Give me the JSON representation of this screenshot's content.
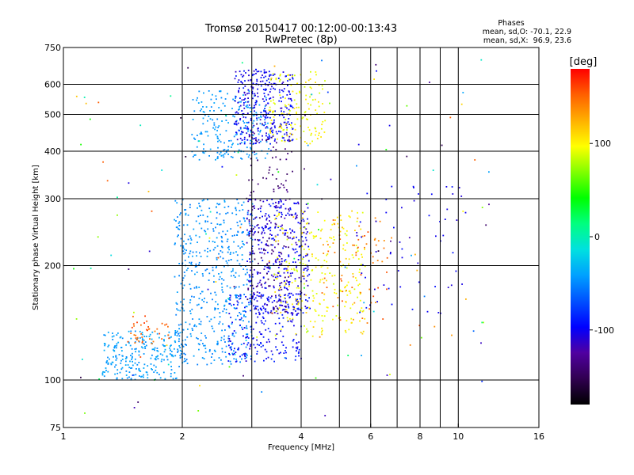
{
  "chart_data": {
    "type": "scatter",
    "title": "Tromsø 20150417 00:12:00-00:13:43",
    "subtitle": "RwPretec (8p)",
    "phase_info": {
      "heading": "Phases",
      "line_o": "mean, sd,O: -70.1, 22.9",
      "line_x": "mean, sd,X:  96.9, 23.6"
    },
    "xlabel": "Frequency [MHz]",
    "ylabel": "Stationary phase Virtual Height [km]",
    "x_scale": "log",
    "y_scale": "log",
    "xlim": [
      1,
      16
    ],
    "ylim": [
      75,
      750
    ],
    "x_ticks": [
      {
        "value": 1,
        "label": "1"
      },
      {
        "value": 2,
        "label": "2"
      },
      {
        "value": 4,
        "label": "4"
      },
      {
        "value": 6,
        "label": "6"
      },
      {
        "value": 8,
        "label": "8"
      },
      {
        "value": 10,
        "label": "10"
      },
      {
        "value": 16,
        "label": "16"
      }
    ],
    "x_grid": [
      2,
      3,
      4,
      5,
      6,
      7,
      8,
      9,
      10
    ],
    "y_ticks": [
      {
        "value": 75,
        "label": "75"
      },
      {
        "value": 100,
        "label": "100"
      },
      {
        "value": 200,
        "label": "200"
      },
      {
        "value": 300,
        "label": "300"
      },
      {
        "value": 400,
        "label": "400"
      },
      {
        "value": 500,
        "label": "500"
      },
      {
        "value": 600,
        "label": "600"
      },
      {
        "value": 750,
        "label": "750"
      }
    ],
    "y_grid": [
      100,
      200,
      300,
      400,
      500,
      600
    ],
    "grid": true,
    "colorbar": {
      "unit": "[deg]",
      "min": -180,
      "max": 180,
      "ticks": [
        {
          "value": 100,
          "label": "100"
        },
        {
          "value": 0,
          "label": "0"
        },
        {
          "value": -100,
          "label": "-100"
        }
      ],
      "colors": [
        "#000000",
        "#300050",
        "#5000a0",
        "#0000ff",
        "#0050ff",
        "#00a0ff",
        "#00e0e0",
        "#00ff80",
        "#00ff00",
        "#80ff00",
        "#ffff00",
        "#ffb000",
        "#ff6000",
        "#ff0000"
      ]
    },
    "clusters": [
      {
        "desc": "low cyan trace",
        "freq": [
          1.25,
          2.0
        ],
        "height": [
          100,
          135
        ],
        "phase": [
          -50,
          -35
        ],
        "count": 260
      },
      {
        "desc": "orange hook",
        "freq": [
          1.45,
          1.85
        ],
        "height": [
          125,
          148
        ],
        "phase": [
          140,
          165
        ],
        "count": 40
      },
      {
        "desc": "E/F1 cyan cloud",
        "freq": [
          1.9,
          3.0
        ],
        "height": [
          110,
          300
        ],
        "phase": [
          -55,
          -40
        ],
        "count": 520
      },
      {
        "desc": "F2 cyan arc",
        "freq": [
          2.1,
          3.3
        ],
        "height": [
          380,
          580
        ],
        "phase": [
          -50,
          -38
        ],
        "count": 220
      },
      {
        "desc": "F2 blue",
        "freq": [
          2.7,
          3.8
        ],
        "height": [
          420,
          660
        ],
        "phase": [
          -115,
          -85
        ],
        "count": 320
      },
      {
        "desc": "F2 X-mode yellow",
        "freq": [
          3.3,
          4.6
        ],
        "height": [
          420,
          650
        ],
        "phase": [
          85,
          110
        ],
        "count": 140
      },
      {
        "desc": "F1 blue",
        "freq": [
          2.9,
          4.2
        ],
        "height": [
          150,
          300
        ],
        "phase": [
          -120,
          -85
        ],
        "count": 420
      },
      {
        "desc": "low blue trace",
        "freq": [
          2.6,
          4.0
        ],
        "height": [
          112,
          170
        ],
        "phase": [
          -110,
          -80
        ],
        "count": 220
      },
      {
        "desc": "purple streaks",
        "freq": [
          2.9,
          3.8
        ],
        "height": [
          150,
          480
        ],
        "phase": [
          -150,
          -130
        ],
        "count": 120
      },
      {
        "desc": "yellow X-mode F1",
        "freq": [
          3.4,
          5.8
        ],
        "height": [
          130,
          280
        ],
        "phase": [
          85,
          115
        ],
        "count": 260
      },
      {
        "desc": "orange patches",
        "freq": [
          4.5,
          6.6
        ],
        "height": [
          140,
          270
        ],
        "phase": [
          130,
          160
        ],
        "count": 70
      },
      {
        "desc": "sparse blue high freq",
        "freq": [
          5.5,
          10.5
        ],
        "height": [
          150,
          330
        ],
        "phase": [
          -110,
          -90
        ],
        "count": 60
      },
      {
        "desc": "sparse scatter",
        "freq": [
          1.05,
          12.0
        ],
        "height": [
          78,
          700
        ],
        "phase": [
          -160,
          160
        ],
        "count": 140
      }
    ]
  }
}
